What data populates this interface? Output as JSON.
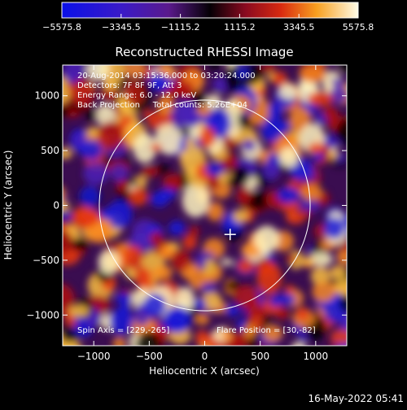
{
  "chart_data": {
    "type": "heatmap",
    "title": "Reconstructed RHESSI Image",
    "xlabel": "Heliocentric X (arcsec)",
    "ylabel": "Heliocentric Y (arcsec)",
    "xlim": [
      -1280,
      1280
    ],
    "ylim": [
      -1280,
      1280
    ],
    "x_ticks": [
      -1000,
      -500,
      0,
      500,
      1000
    ],
    "y_ticks": [
      -1000,
      -500,
      0,
      500,
      1000
    ],
    "x_tick_labels": [
      "−1000",
      "−500",
      "0",
      "500",
      "1000"
    ],
    "y_tick_labels": [
      "−1000",
      "−500",
      "0",
      "500",
      "1000"
    ],
    "colorbar": {
      "range": [
        -5575.8,
        5575.8
      ],
      "ticks": [
        -5575.8,
        -3345.5,
        -1115.2,
        1115.2,
        3345.5,
        5575.8
      ],
      "tick_labels": [
        "−5575.8",
        "−3345.5",
        "−1115.2",
        "1115.2",
        "3345.5",
        "5575.8"
      ]
    },
    "solar_disk_radius_arcsec": 950,
    "flare_position": [
      30,
      -82
    ],
    "spin_axis": [
      229,
      -265
    ],
    "info_lines": [
      "20-Aug-2014 03:15:36.000 to 03:20:24.000",
      "Detectors: 7F 8F 9F, Att 3",
      "Energy Range: 6.0 - 12.0 keV",
      "Back Projection     Total counts: 5.26E+04"
    ],
    "spin_axis_label": "Spin Axis = [229,-265]",
    "flare_position_label": "Flare Position = [30,-82]"
  },
  "footer_timestamp": "16-May-2022 05:41"
}
